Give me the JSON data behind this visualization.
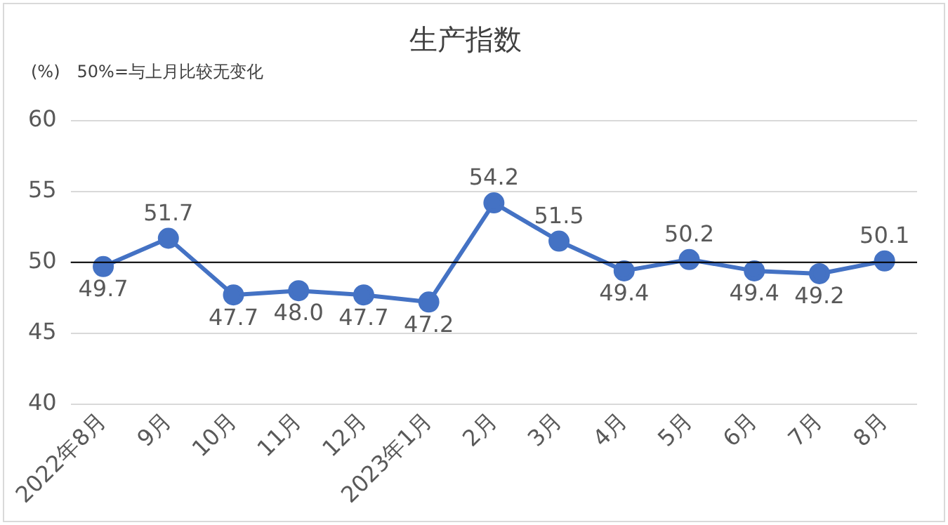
{
  "chart_data": {
    "type": "line",
    "title": "生产指数",
    "ylabel": "(%)",
    "annotations": [
      "50%=与上月比较无变化"
    ],
    "categories": [
      "2022年8月",
      "9月",
      "10月",
      "11月",
      "12月",
      "2023年1月",
      "2月",
      "3月",
      "4月",
      "5月",
      "6月",
      "7月",
      "8月"
    ],
    "series": [
      {
        "color": "#4472c4",
        "values": [
          49.7,
          51.7,
          47.7,
          48.0,
          47.7,
          47.2,
          54.2,
          51.5,
          49.4,
          50.2,
          49.4,
          49.2,
          50.1
        ],
        "value_labels": [
          "49.7",
          "51.7",
          "47.7",
          "48.0",
          "47.7",
          "47.2",
          "54.2",
          "51.5",
          "49.4",
          "50.2",
          "49.4",
          "49.2",
          "50.1"
        ]
      }
    ],
    "ylim": [
      40,
      60
    ],
    "yticks": [
      40,
      45,
      50,
      55,
      60
    ],
    "grid": "y",
    "legend": false,
    "marker": "circle",
    "line_style": "solid",
    "data_labels": true,
    "ref_lines": [
      {
        "axis": "y",
        "value": 50,
        "color": "#000000"
      }
    ]
  }
}
